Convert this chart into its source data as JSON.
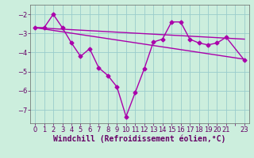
{
  "background_color": "#cceedd",
  "line_color": "#aa00aa",
  "grid_color": "#99cccc",
  "xlabel": "Windchill (Refroidissement éolien,°C)",
  "xlim": [
    -0.5,
    23.5
  ],
  "ylim": [
    -7.7,
    -1.5
  ],
  "yticks": [
    -7,
    -6,
    -5,
    -4,
    -3,
    -2
  ],
  "xtick_labels": [
    "0",
    "1",
    "2",
    "3",
    "4",
    "5",
    "6",
    "7",
    "8",
    "9",
    "10",
    "11",
    "12",
    "13",
    "14",
    "15",
    "16",
    "17",
    "18",
    "19",
    "20",
    "21",
    "",
    "23"
  ],
  "xtick_positions": [
    0,
    1,
    2,
    3,
    4,
    5,
    6,
    7,
    8,
    9,
    10,
    11,
    12,
    13,
    14,
    15,
    16,
    17,
    18,
    19,
    20,
    21,
    22,
    23
  ],
  "line1_x": [
    0,
    1,
    2,
    3,
    4,
    5,
    6,
    7,
    8,
    9,
    10,
    11,
    12,
    13,
    14,
    15,
    16,
    17,
    18,
    19,
    20,
    21,
    23
  ],
  "line1_y": [
    -2.7,
    -2.7,
    -2.0,
    -2.7,
    -3.5,
    -4.2,
    -3.8,
    -4.8,
    -5.2,
    -5.8,
    -7.35,
    -6.1,
    -4.85,
    -3.45,
    -3.3,
    -2.4,
    -2.4,
    -3.3,
    -3.5,
    -3.6,
    -3.5,
    -3.2,
    -4.4
  ],
  "line2_x": [
    0,
    23
  ],
  "line2_y": [
    -2.7,
    -4.35
  ],
  "line3_x": [
    0,
    23
  ],
  "line3_y": [
    -2.7,
    -3.3
  ],
  "tick_fontsize": 6,
  "label_fontsize": 7,
  "marker": "D",
  "markersize": 2.5,
  "linewidth": 1.0
}
